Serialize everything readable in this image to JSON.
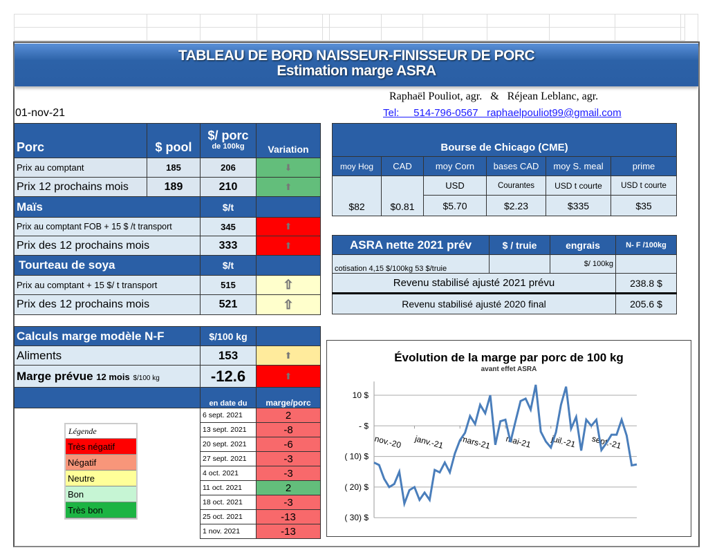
{
  "header": {
    "title": "TABLEAU  DE BORD NAISSEUR-FINISSEUR  DE PORC",
    "subtitle": "Estimation marge ASRA",
    "authors": "Raphaël Pouliot, agr.   &   Réjean Leblanc, agr.",
    "contact": "Tel:     514-796-0567   raphaelpouliot99@gmail.com",
    "date": "01-nov-21"
  },
  "prices": {
    "porc": {
      "label": "Porc",
      "col_pool": "$ pool",
      "col_porc": "$/ porc",
      "col_porc_sub": "de 100kg",
      "col_var": "Variation",
      "rows": [
        {
          "label": "Prix au comptant",
          "pool": "185",
          "porc": "206",
          "trend": "down"
        },
        {
          "label": "Prix 12 prochains mois",
          "pool": "189",
          "porc": "210",
          "trend": "up"
        }
      ]
    },
    "mais": {
      "label": "Maïs",
      "unit": "$/t",
      "rows": [
        {
          "label": "Prix au comptant  FOB + 15 $ /t transport",
          "value": "345"
        },
        {
          "label": "Prix des 12 prochains mois",
          "value": "333"
        }
      ]
    },
    "soya": {
      "label": "Tourteau de soya",
      "unit": "$/t",
      "rows": [
        {
          "label": "Prix au comptant  + 15 $/ t  transport",
          "value": "515"
        },
        {
          "label": "Prix des 12 prochains mois",
          "value": "521"
        }
      ]
    }
  },
  "cme": {
    "title": "Bourse de Chicago (CME)",
    "cols": [
      "moy Hog",
      "CAD",
      "moy Corn",
      "bases CAD",
      "moy S. meal",
      "prime"
    ],
    "units": [
      "USD",
      "Courantes",
      "USD t courte",
      "USD t courte"
    ],
    "values": [
      "$82",
      "$0.81",
      "$5.70",
      "$2.23",
      "$335",
      "$35"
    ]
  },
  "asra": {
    "title": "ASRA nette 2021 prév",
    "col_truie": "$ / truie",
    "col_engrais": "engrais",
    "col_nf": "N- F /100kg",
    "cotisation": "cotisation 4,15 $/100kg  53 $/truie",
    "engrais_unit": "$/ 100kg",
    "rev2021_label": "Revenu stabilisé ajusté 2021 prévu",
    "rev2021": "238.8 $",
    "rev2020_label": "Revenu stabilisé ajusté 2020 final",
    "rev2020": "205.6 $"
  },
  "marge": {
    "title": "Calculs marge  modèle N-F",
    "unit": "$/100 kg",
    "aliments_label": "Aliments",
    "aliments": "153",
    "prevue_label": "Marge prévue",
    "prevue_sub": "12 mois",
    "prevue_unit": "$/100 kg",
    "prevue": "-12.6",
    "col_date": "en date du",
    "col_marge": "marge/porc",
    "history": [
      {
        "date": "6 sept. 2021",
        "value": "2",
        "color": "#f8696b"
      },
      {
        "date": "13 sept. 2021",
        "value": "-8",
        "color": "#f8696b"
      },
      {
        "date": "20 sept. 2021",
        "value": "-6",
        "color": "#f8696b"
      },
      {
        "date": "27 sept. 2021",
        "value": "-3",
        "color": "#f8696b"
      },
      {
        "date": "4 oct. 2021",
        "value": "-3",
        "color": "#f8696b"
      },
      {
        "date": "11 oct. 2021",
        "value": "2",
        "color": "#63be7b"
      },
      {
        "date": "18 oct. 2021",
        "value": "-3",
        "color": "#f8696b"
      },
      {
        "date": "25 oct. 2021",
        "value": "-13",
        "color": "#f8696b"
      },
      {
        "date": "1 nov. 2021",
        "value": "-13",
        "color": "#f8696b"
      }
    ]
  },
  "legend": {
    "title": "Légende",
    "items": [
      {
        "label": "Très négatif",
        "color": "#ff0000"
      },
      {
        "label": "Négatif",
        "color": "#f8967a"
      },
      {
        "label": "Neutre",
        "color": "#ffff99"
      },
      {
        "label": "Bon",
        "color": "#c6f5d4"
      },
      {
        "label": "Très bon",
        "color": "#1cb443"
      }
    ]
  },
  "chart_data": {
    "type": "line",
    "title": "Évolution de la marge par porc de 100 kg",
    "subtitle": "avant effet ASRA",
    "ylim": [
      -30,
      15
    ],
    "yticks": [
      10,
      0,
      -10,
      -20,
      -30
    ],
    "ytick_labels": [
      "10  $",
      "-   $",
      "( 10) $",
      "( 20) $",
      "( 30) $"
    ],
    "xtick_labels": [
      "nov.-20",
      "janv.-21",
      "mars-21",
      "mai-21",
      "juil.-21",
      "sept.-21"
    ],
    "xtick_index": [
      0,
      8,
      17,
      26,
      35,
      43
    ],
    "grid": true,
    "color": "#4a7ebb",
    "values": [
      -12,
      -12.8,
      -17.3,
      -20,
      -19,
      -15,
      -25.4,
      -21,
      -20,
      -24.2,
      -21.8,
      -24.2,
      -14.4,
      -15.2,
      -12,
      -15.2,
      -9,
      -4.7,
      -2.3,
      3.2,
      0.6,
      6.9,
      4.1,
      10,
      -6.2,
      1.5,
      2,
      -5.3,
      1.5,
      8.1,
      8.9,
      5.3,
      13.4,
      -1.9,
      -5.1,
      -7.1,
      -2.1,
      6.9,
      12.8,
      -0.9,
      2.9,
      -8.1,
      2,
      0,
      2,
      -7.9,
      -5.6,
      -2.9,
      -2.9,
      2,
      -3.2,
      -12.9,
      -12.6
    ]
  }
}
